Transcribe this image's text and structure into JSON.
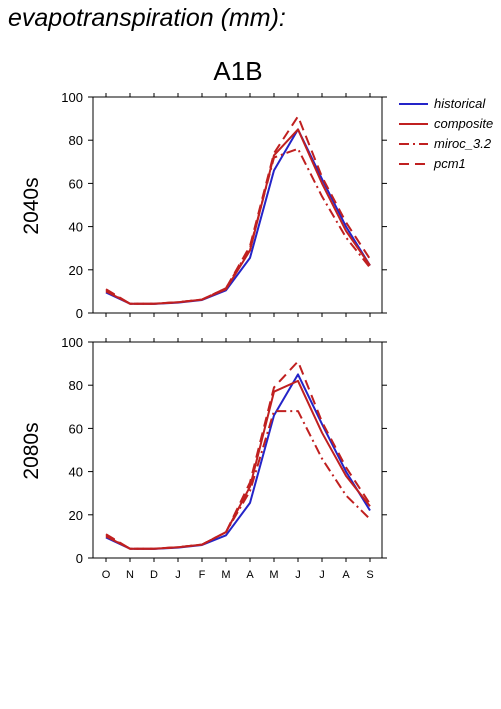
{
  "page_title": "evapotranspiration (mm):",
  "chart_data": {
    "type": "line",
    "title": "A1B",
    "categories": [
      "O",
      "N",
      "D",
      "J",
      "F",
      "M",
      "A",
      "M",
      "J",
      "J",
      "A",
      "S"
    ],
    "ylim": [
      0,
      100
    ],
    "yticks": [
      "0",
      "20",
      "40",
      "60",
      "80",
      "100"
    ],
    "legend_position": "right",
    "legend": [
      {
        "name": "historical",
        "color": "#2424c8",
        "style": "solid"
      },
      {
        "name": "composite",
        "color": "#c02020",
        "style": "solid"
      },
      {
        "name": "miroc_3.2",
        "color": "#c02020",
        "style": "dashdot"
      },
      {
        "name": "pcm1",
        "color": "#c02020",
        "style": "dashed"
      }
    ],
    "panels": [
      {
        "label": "2040s",
        "series": [
          {
            "name": "historical",
            "values": [
              9.5,
              4.3,
              4.2,
              4.8,
              6,
              10.5,
              25.5,
              66,
              85,
              62,
              40,
              22
            ]
          },
          {
            "name": "composite",
            "values": [
              10,
              4.3,
              4.3,
              5,
              6.2,
              11,
              29,
              73,
              85,
              60,
              38,
              22
            ]
          },
          {
            "name": "miroc_3.2",
            "values": [
              10.5,
              4.3,
              4.3,
              5,
              6.2,
              11.5,
              30,
              72,
              76,
              54,
              35,
              21
            ]
          },
          {
            "name": "pcm1",
            "values": [
              11,
              4.3,
              4.3,
              5,
              6.2,
              11.5,
              31,
              74,
              91,
              63,
              42,
              25
            ]
          }
        ]
      },
      {
        "label": "2080s",
        "series": [
          {
            "name": "historical",
            "values": [
              9.5,
              4.3,
              4.2,
              4.8,
              6,
              10.5,
              25.5,
              66,
              85,
              62,
              40,
              22
            ]
          },
          {
            "name": "composite",
            "values": [
              10,
              4.3,
              4.3,
              5,
              6.2,
              12,
              33,
              77,
              82,
              58,
              38,
              24
            ]
          },
          {
            "name": "miroc_3.2",
            "values": [
              10.5,
              4.3,
              4.3,
              5,
              6.2,
              12,
              31,
              68,
              68,
              46,
              29,
              18
            ]
          },
          {
            "name": "pcm1",
            "values": [
              11,
              4.3,
              4.3,
              5,
              6.2,
              12,
              35,
              79,
              91,
              63,
              42,
              25
            ]
          }
        ]
      }
    ]
  }
}
